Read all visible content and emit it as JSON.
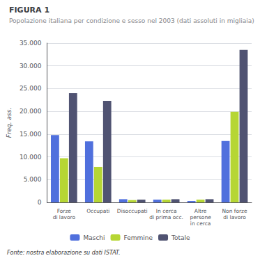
{
  "chart_data": {
    "type": "bar",
    "title": "FIGURA 1",
    "subtitle": "Popolazione italiana per condizione e sesso nel 2003 (dati assoluti in migliaia)",
    "ylabel": "Freq. ass.",
    "annotations": [
      "Fonte: nostra elaborazione su dati ISTAT."
    ],
    "categories": [
      "Forze\ndi lavoro",
      "Occupati",
      "Disoccupati",
      "In cerca\ndi prima occ.",
      "Altre\npersone\nin cerca",
      "Non forze\ndi lavoro"
    ],
    "series": [
      {
        "name": "Maschi",
        "values": [
          14800,
          13400,
          700,
          600,
          300,
          13500
        ]
      },
      {
        "name": "Femmine",
        "values": [
          9700,
          7800,
          500,
          600,
          600,
          19900
        ]
      },
      {
        "name": "Totale",
        "values": [
          24000,
          22300,
          600,
          700,
          700,
          33500
        ]
      }
    ],
    "ylim": [
      0,
      35000
    ],
    "yticks": [
      0,
      {
        "value": 5000,
        "label": "5.000"
      },
      {
        "value": 10000,
        "label": "10.000"
      },
      {
        "value": 15000,
        "label": "15.000"
      },
      {
        "value": 20000,
        "label": "20.000"
      },
      {
        "value": 25000,
        "label": "25.000"
      },
      {
        "value": 30000,
        "label": "30.000"
      },
      {
        "value": 35000,
        "label": "35.000"
      }
    ],
    "grid": true,
    "legend": "bottom"
  }
}
